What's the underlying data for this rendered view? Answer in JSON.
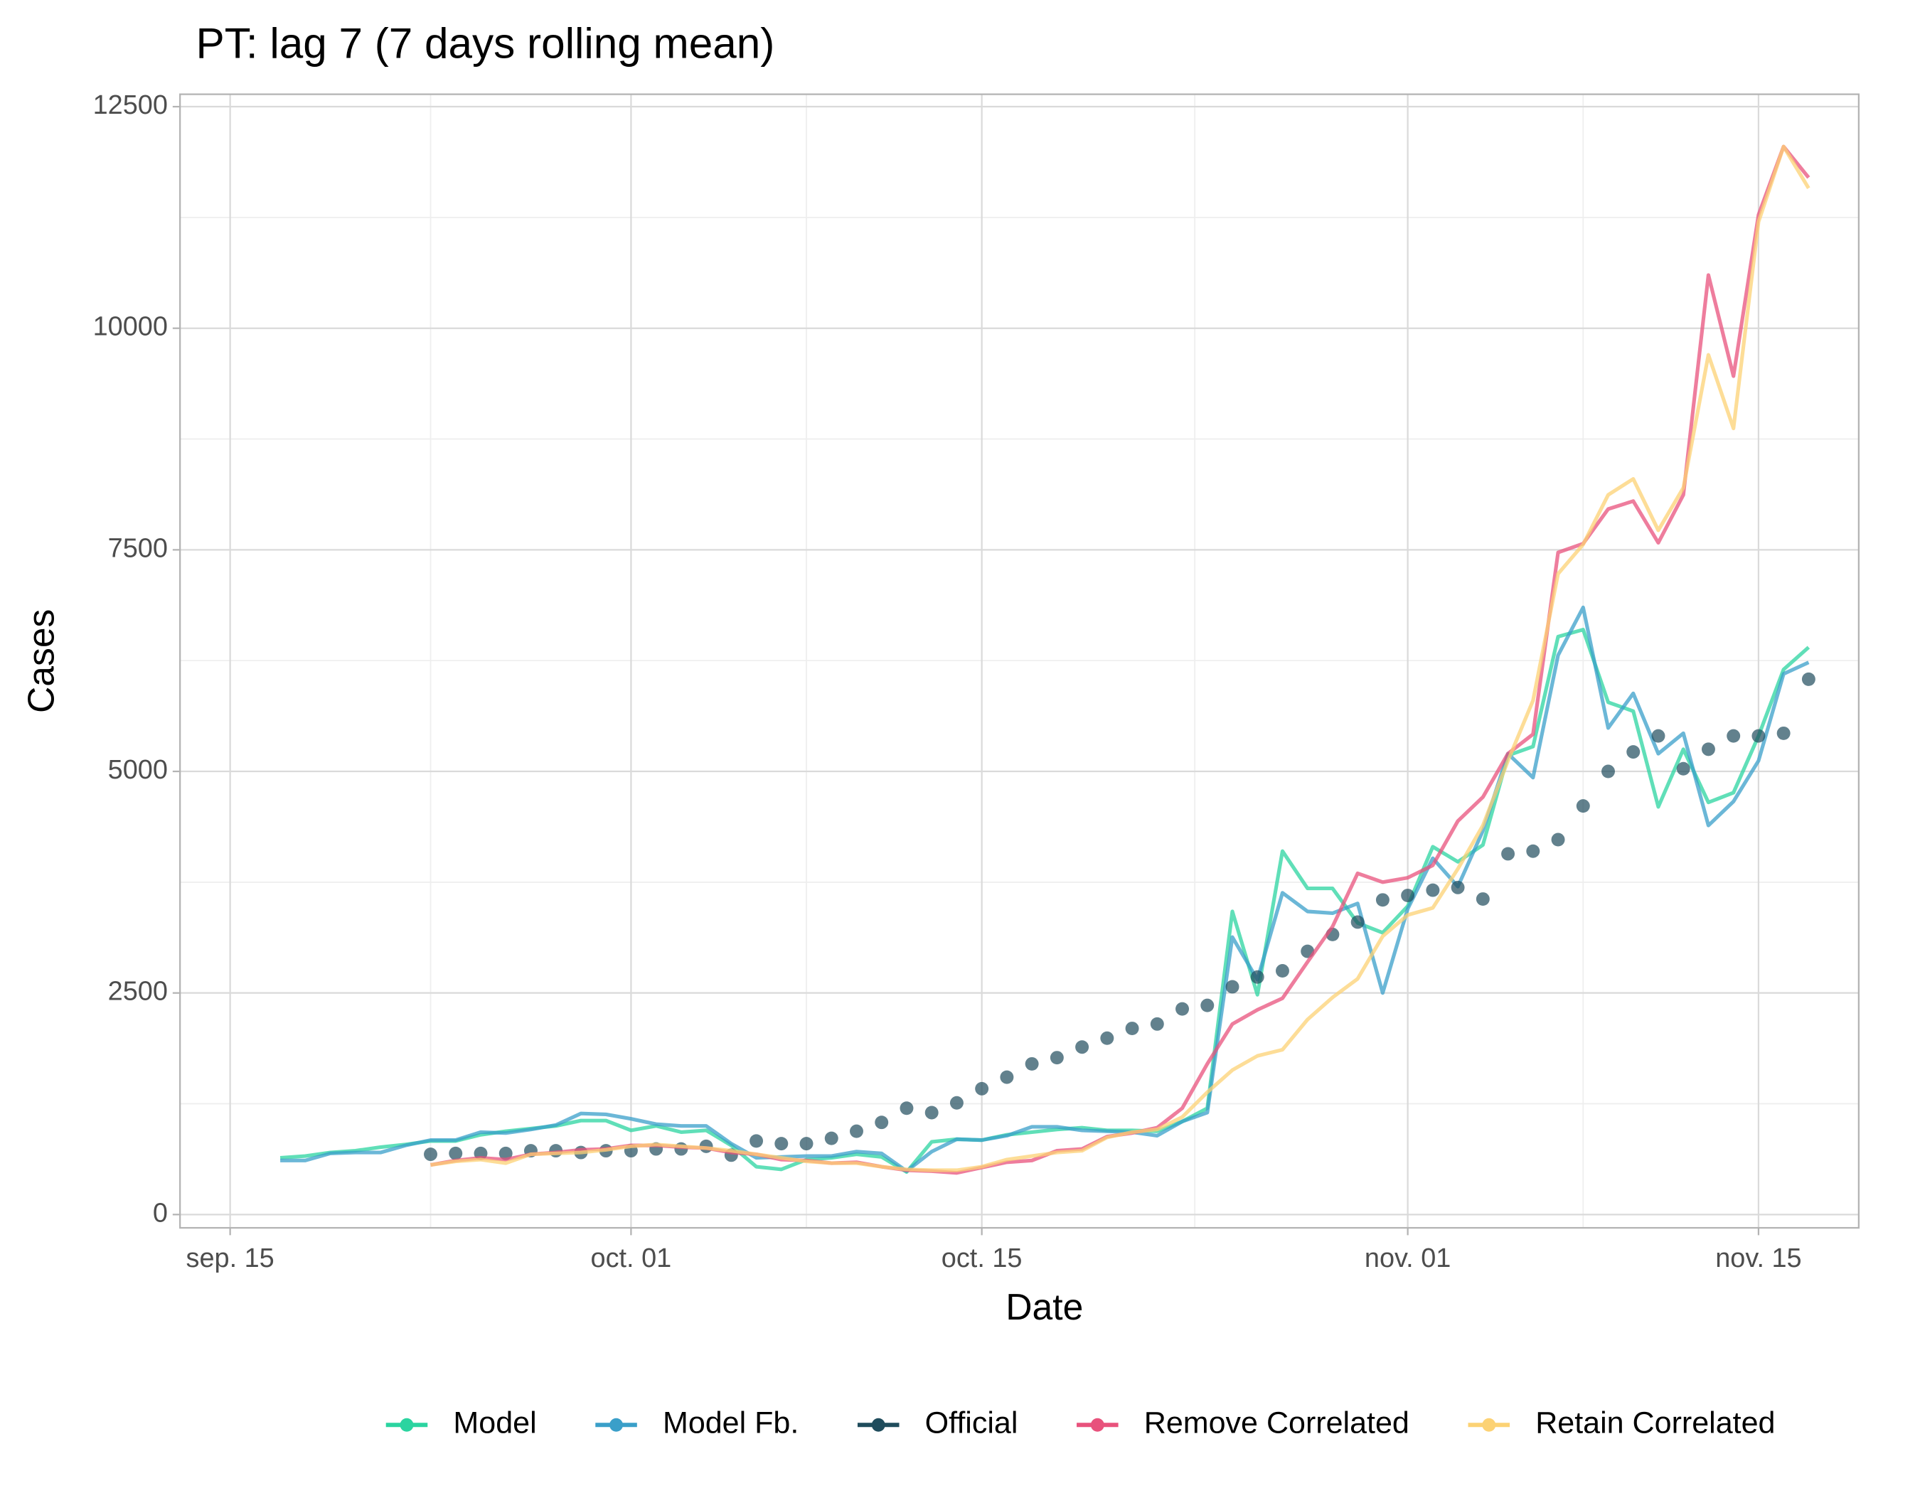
{
  "chart_data": {
    "type": "line",
    "title": "PT: lag 7 (7 days rolling mean)",
    "xlabel": "Date",
    "ylabel": "Cases",
    "x": [
      "09-17",
      "09-18",
      "09-19",
      "09-20",
      "09-21",
      "09-22",
      "09-23",
      "09-24",
      "09-25",
      "09-26",
      "09-27",
      "09-28",
      "09-29",
      "09-30",
      "10-01",
      "10-02",
      "10-03",
      "10-04",
      "10-05",
      "10-06",
      "10-07",
      "10-08",
      "10-09",
      "10-10",
      "10-11",
      "10-12",
      "10-13",
      "10-14",
      "10-15",
      "10-16",
      "10-17",
      "10-18",
      "10-19",
      "10-20",
      "10-21",
      "10-22",
      "10-23",
      "10-24",
      "10-25",
      "10-26",
      "10-27",
      "10-28",
      "10-29",
      "10-30",
      "10-31",
      "11-01",
      "11-02",
      "11-03",
      "11-04",
      "11-05",
      "11-06",
      "11-07",
      "11-08",
      "11-09",
      "11-10",
      "11-11",
      "11-12",
      "11-13",
      "11-14",
      "11-15",
      "11-16",
      "11-17"
    ],
    "xlim": [
      "09-13",
      "11-19"
    ],
    "xticks": [
      {
        "value": "09-15",
        "label": "sep. 15"
      },
      {
        "value": "10-01",
        "label": "oct. 01"
      },
      {
        "value": "10-15",
        "label": "oct. 15"
      },
      {
        "value": "11-01",
        "label": "nov. 01"
      },
      {
        "value": "11-15",
        "label": "nov. 15"
      }
    ],
    "ylim": [
      -150,
      12640
    ],
    "yticks": [
      0,
      2500,
      5000,
      7500,
      10000,
      12500
    ],
    "grid": true,
    "legend": "bottom",
    "series": [
      {
        "name": "Model",
        "color": "#2bd4a0",
        "style": "line",
        "values": [
          640,
          660,
          700,
          720,
          760,
          790,
          830,
          830,
          900,
          940,
          970,
          1000,
          1060,
          1060,
          950,
          1000,
          930,
          950,
          780,
          540,
          510,
          620,
          640,
          680,
          650,
          480,
          820,
          850,
          840,
          900,
          930,
          960,
          980,
          950,
          950,
          940,
          1050,
          1200,
          3420,
          2480,
          4100,
          3680,
          3680,
          3290,
          3180,
          3480,
          4150,
          3980,
          4170,
          5180,
          5280,
          6520,
          6600,
          5780,
          5680,
          4600,
          5250,
          4650,
          4760,
          5400,
          6150,
          6400
        ]
      },
      {
        "name": "Model Fb.",
        "color": "#3a9fc9",
        "style": "line",
        "values": [
          610,
          610,
          690,
          700,
          700,
          780,
          840,
          840,
          930,
          920,
          960,
          1010,
          1140,
          1130,
          1080,
          1020,
          1000,
          1000,
          800,
          640,
          650,
          660,
          660,
          710,
          690,
          490,
          710,
          850,
          840,
          890,
          990,
          990,
          950,
          940,
          930,
          890,
          1050,
          1150,
          3130,
          2650,
          3630,
          3420,
          3400,
          3510,
          2500,
          3450,
          4020,
          3700,
          4330,
          5200,
          4930,
          6310,
          6850,
          5490,
          5880,
          5200,
          5430,
          4390,
          4660,
          5120,
          6100,
          6230
        ]
      },
      {
        "name": "Official",
        "color": "#1f4c5c",
        "style": "points",
        "values": [
          null,
          null,
          null,
          null,
          null,
          null,
          680,
          690,
          690,
          690,
          720,
          720,
          700,
          720,
          720,
          740,
          740,
          770,
          670,
          830,
          800,
          800,
          860,
          940,
          1040,
          1200,
          1150,
          1260,
          1420,
          1550,
          1700,
          1770,
          1890,
          1990,
          2100,
          2150,
          2320,
          2360,
          2570,
          2680,
          2750,
          2970,
          3160,
          3300,
          3550,
          3600,
          3660,
          3690,
          3560,
          4070,
          4100,
          4230,
          4610,
          5000,
          5220,
          5400,
          5030,
          5250,
          5400,
          5400,
          5430,
          6040
        ]
      },
      {
        "name": "Remove Correlated",
        "color": "#e8527c",
        "style": "line",
        "values": [
          null,
          null,
          null,
          null,
          null,
          null,
          560,
          610,
          640,
          620,
          680,
          700,
          730,
          740,
          780,
          780,
          760,
          750,
          700,
          680,
          620,
          610,
          580,
          590,
          540,
          500,
          490,
          470,
          530,
          590,
          610,
          720,
          740,
          880,
          920,
          980,
          1200,
          1700,
          2150,
          2310,
          2440,
          2850,
          3250,
          3850,
          3750,
          3800,
          3940,
          4440,
          4710,
          5200,
          5420,
          7470,
          7570,
          7960,
          8050,
          7580,
          8120,
          10600,
          9460,
          11280,
          12050,
          11700
        ]
      },
      {
        "name": "Retain Correlated",
        "color": "#fcd274",
        "style": "line",
        "values": [
          null,
          null,
          null,
          null,
          null,
          null,
          560,
          600,
          620,
          580,
          680,
          690,
          700,
          730,
          770,
          790,
          770,
          750,
          720,
          680,
          640,
          600,
          580,
          580,
          540,
          510,
          500,
          500,
          540,
          620,
          660,
          700,
          720,
          870,
          930,
          960,
          1100,
          1380,
          1630,
          1790,
          1860,
          2200,
          2450,
          2660,
          3140,
          3380,
          3460,
          3900,
          4390,
          5120,
          5800,
          7230,
          7560,
          8120,
          8300,
          7720,
          8200,
          9700,
          8870,
          11200,
          12050,
          11580
        ]
      }
    ]
  }
}
